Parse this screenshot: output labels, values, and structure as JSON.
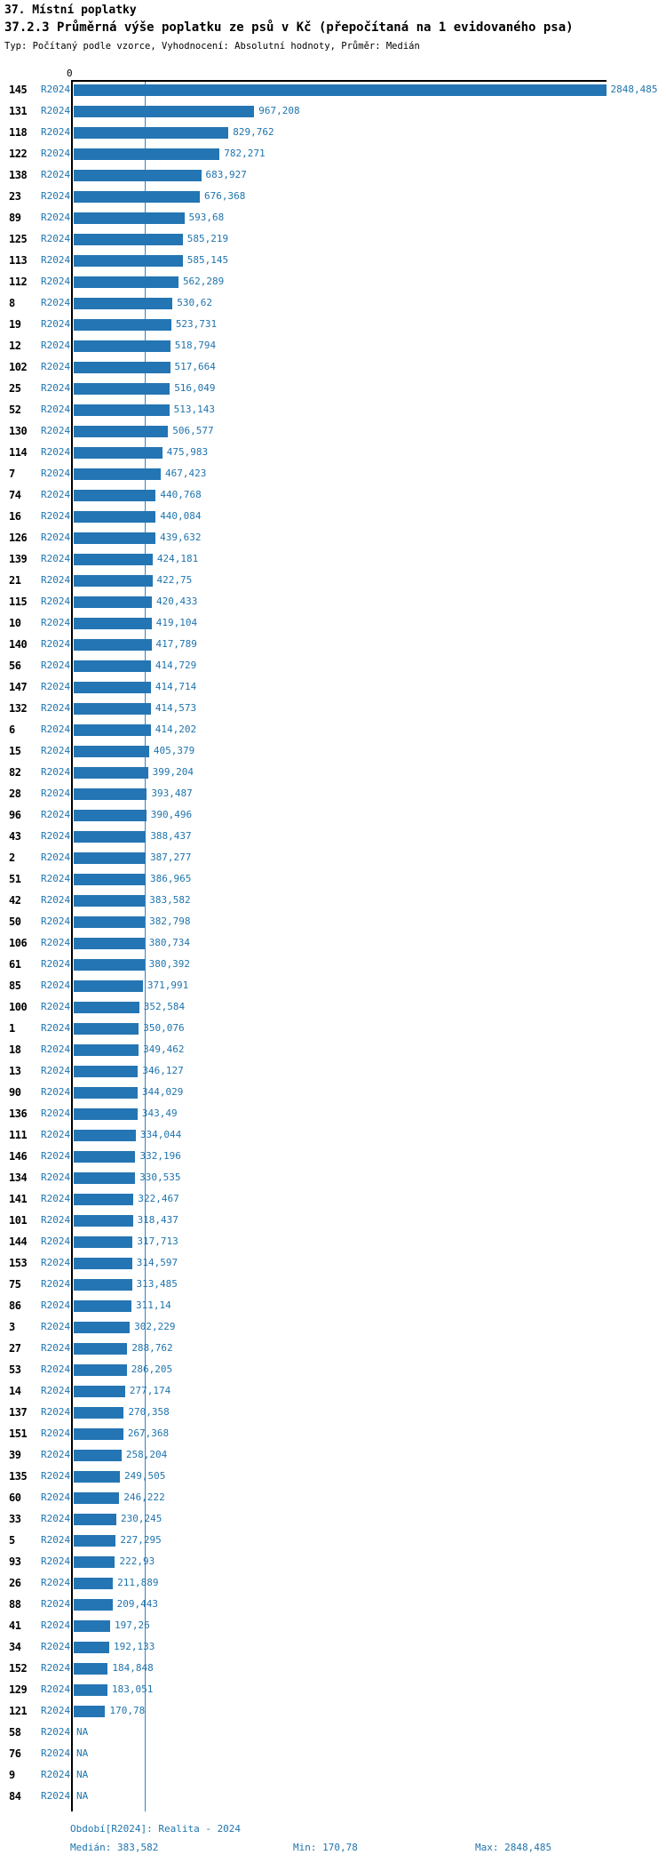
{
  "header": {
    "title1": "37. Místní poplatky",
    "title2": "37.2.3 Průměrná výše poplatku ze psů v Kč (přepočítaná na 1 evidovaného psa)",
    "subtitle": "Typ: Počítaný podle vzorce, Vyhodnocení: Absolutní hodnoty, Průměr: Medián"
  },
  "axis": {
    "zero_label": "0"
  },
  "footer": {
    "period": "Období[R2024]: Realita - 2024",
    "median": "Medián: 383,582",
    "min": "Min: 170,78",
    "max": "Max: 2848,485"
  },
  "colors": {
    "bar": "#2475b3",
    "blue_text": "#1f74ad",
    "median_line": "#3583c0",
    "axis": "#000000"
  },
  "chart_data": {
    "type": "bar",
    "orientation": "horizontal",
    "title": "37.2.3 Průměrná výše poplatku ze psů v Kč (přepočítaná na 1 evidovaného psa)",
    "subtitle": "Typ: Počítaný podle vzorce, Vyhodnocení: Absolutní hodnoty, Průměr: Medián",
    "period": "R2024",
    "na_label": "NA",
    "xlim": [
      0,
      2848.485
    ],
    "stats": {
      "median": 383.582,
      "min": 170.78,
      "max": 2848.485
    },
    "legend_position": "none",
    "grid": false,
    "categories": [
      "145",
      "131",
      "118",
      "122",
      "138",
      "23",
      "89",
      "125",
      "113",
      "112",
      "8",
      "19",
      "12",
      "102",
      "25",
      "52",
      "130",
      "114",
      "7",
      "74",
      "16",
      "126",
      "139",
      "21",
      "115",
      "10",
      "140",
      "56",
      "147",
      "132",
      "6",
      "15",
      "82",
      "28",
      "96",
      "43",
      "2",
      "51",
      "42",
      "50",
      "106",
      "61",
      "85",
      "100",
      "1",
      "18",
      "13",
      "90",
      "136",
      "111",
      "146",
      "134",
      "141",
      "101",
      "144",
      "153",
      "75",
      "86",
      "3",
      "27",
      "53",
      "14",
      "137",
      "151",
      "39",
      "135",
      "60",
      "33",
      "5",
      "93",
      "26",
      "88",
      "41",
      "34",
      "152",
      "129",
      "121",
      "58",
      "76",
      "9",
      "84"
    ],
    "values": [
      2848.485,
      967.208,
      829.762,
      782.271,
      683.927,
      676.368,
      593.68,
      585.219,
      585.145,
      562.289,
      530.62,
      523.731,
      518.794,
      517.664,
      516.049,
      513.143,
      506.577,
      475.983,
      467.423,
      440.768,
      440.084,
      439.632,
      424.181,
      422.75,
      420.433,
      419.104,
      417.789,
      414.729,
      414.714,
      414.573,
      414.202,
      405.379,
      399.204,
      393.487,
      390.496,
      388.437,
      387.277,
      386.965,
      383.582,
      382.798,
      380.734,
      380.392,
      371.991,
      352.584,
      350.076,
      349.462,
      346.127,
      344.029,
      343.49,
      334.044,
      332.196,
      330.535,
      322.467,
      318.437,
      317.713,
      314.597,
      313.485,
      311.14,
      302.229,
      288.762,
      286.205,
      277.174,
      270.358,
      267.368,
      258.204,
      249.505,
      246.222,
      230.245,
      227.295,
      222.93,
      211.889,
      209.443,
      197.26,
      192.133,
      184.848,
      183.051,
      170.78,
      null,
      null,
      null,
      null
    ],
    "display_values": [
      "2848,485",
      "967,208",
      "829,762",
      "782,271",
      "683,927",
      "676,368",
      "593,68",
      "585,219",
      "585,145",
      "562,289",
      "530,62",
      "523,731",
      "518,794",
      "517,664",
      "516,049",
      "513,143",
      "506,577",
      "475,983",
      "467,423",
      "440,768",
      "440,084",
      "439,632",
      "424,181",
      "422,75",
      "420,433",
      "419,104",
      "417,789",
      "414,729",
      "414,714",
      "414,573",
      "414,202",
      "405,379",
      "399,204",
      "393,487",
      "390,496",
      "388,437",
      "387,277",
      "386,965",
      "383,582",
      "382,798",
      "380,734",
      "380,392",
      "371,991",
      "352,584",
      "350,076",
      "349,462",
      "346,127",
      "344,029",
      "343,49",
      "334,044",
      "332,196",
      "330,535",
      "322,467",
      "318,437",
      "317,713",
      "314,597",
      "313,485",
      "311,14",
      "302,229",
      "288,762",
      "286,205",
      "277,174",
      "270,358",
      "267,368",
      "258,204",
      "249,505",
      "246,222",
      "230,245",
      "227,295",
      "222,93",
      "211,889",
      "209,443",
      "197,26",
      "192,133",
      "184,848",
      "183,051",
      "170,78",
      "NA",
      "NA",
      "NA",
      "NA"
    ]
  }
}
